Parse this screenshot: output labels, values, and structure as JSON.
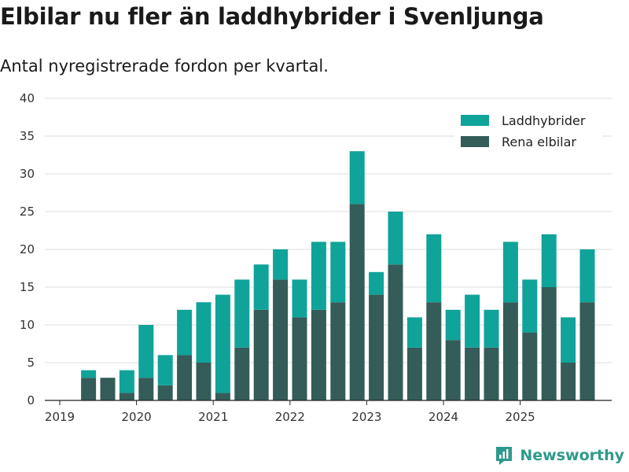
{
  "title": "Elbilar nu fler än laddhybrider i Svenljunga",
  "subtitle": "Antal nyregistrerade fordon per kvartal.",
  "brand": "Newsworthy",
  "colors": {
    "laddhybrider": "#0fa39a",
    "elbilar": "#345c58",
    "grid": "#dcdcdc",
    "brand": "#2e9a8c"
  },
  "chart_data": {
    "type": "bar",
    "stacked": true,
    "title": "Elbilar nu fler än laddhybrider i Svenljunga",
    "subtitle": "Antal nyregistrerade fordon per kvartal.",
    "xlabel": "",
    "ylabel": "",
    "ylim": [
      0,
      40
    ],
    "yticks": [
      0,
      5,
      10,
      15,
      20,
      25,
      30,
      35,
      40
    ],
    "xticks": [
      "2019",
      "2020",
      "2021",
      "2022",
      "2023",
      "2024",
      "2025"
    ],
    "legend_position": "top-right",
    "categories": [
      "2019Q1",
      "2019Q2",
      "2019Q3",
      "2019Q4",
      "2020Q1",
      "2020Q2",
      "2020Q3",
      "2020Q4",
      "2021Q1",
      "2021Q2",
      "2021Q3",
      "2021Q4",
      "2022Q1",
      "2022Q2",
      "2022Q3",
      "2022Q4",
      "2023Q1",
      "2023Q2",
      "2023Q3",
      "2023Q4",
      "2024Q1",
      "2024Q2",
      "2024Q3",
      "2024Q4",
      "2025Q1",
      "2025Q2",
      "2025Q3",
      "2025Q4"
    ],
    "series": [
      {
        "name": "Rena elbilar",
        "values": [
          0,
          3,
          3,
          1,
          3,
          2,
          6,
          5,
          1,
          7,
          12,
          16,
          11,
          12,
          13,
          26,
          14,
          18,
          7,
          13,
          8,
          7,
          7,
          13,
          9,
          15,
          5,
          13
        ]
      },
      {
        "name": "Laddhybrider",
        "values": [
          0,
          1,
          0,
          3,
          7,
          4,
          6,
          8,
          13,
          9,
          6,
          4,
          5,
          9,
          8,
          7,
          3,
          7,
          4,
          9,
          4,
          7,
          5,
          8,
          7,
          7,
          6,
          7
        ]
      }
    ]
  }
}
